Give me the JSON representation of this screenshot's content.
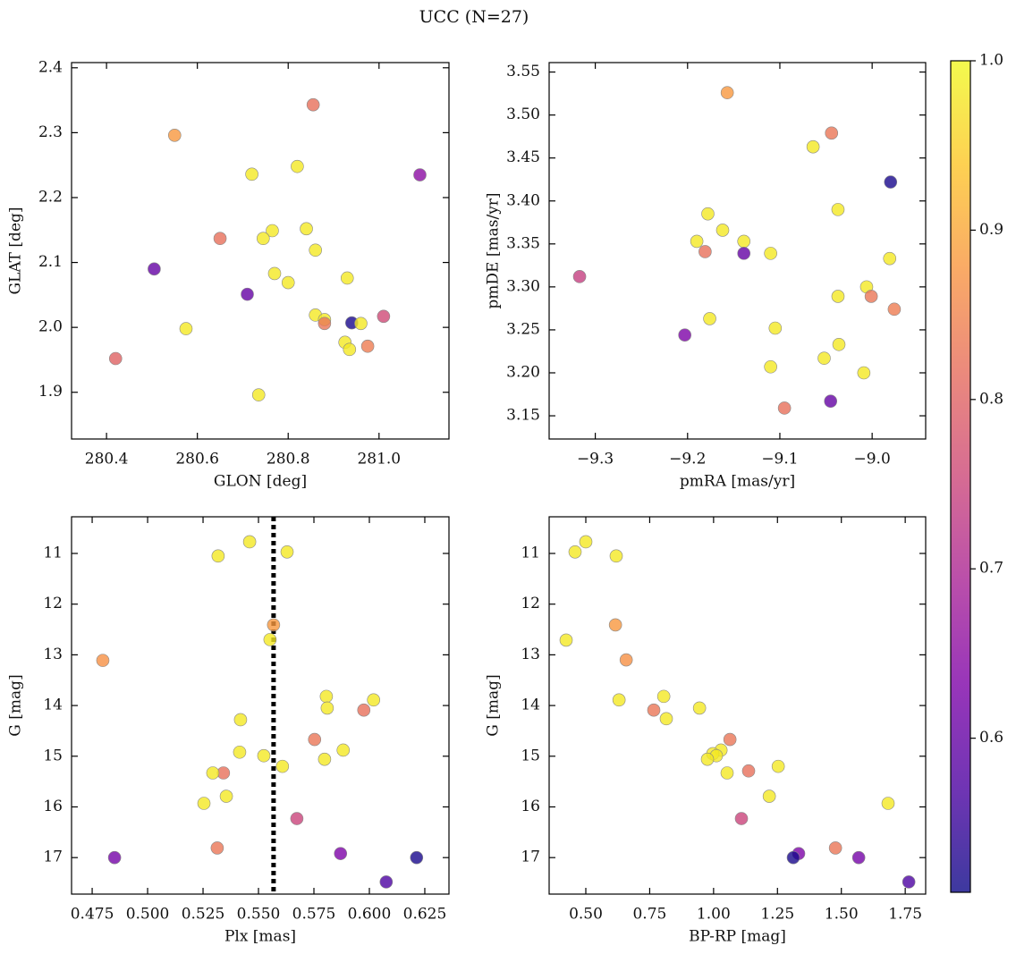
{
  "title": "UCC (N=27)",
  "colorbar": {
    "clim": [
      0.509,
      1.0
    ],
    "ticks": [
      0.6,
      0.7,
      0.8,
      0.9,
      {
        "value": 1,
        "label": "1.0"
      }
    ],
    "colormap": "plasma"
  },
  "chart_data": [
    {
      "type": "scatter",
      "xlabel": "GLON [deg]",
      "ylabel": "GLAT [deg]",
      "xlim": [
        280.323,
        281.154
      ],
      "ylim": [
        1.828,
        2.408
      ],
      "xticks": [
        280.4,
        280.6,
        280.8,
        {
          "value": 281,
          "label": "281.0"
        }
      ],
      "yticks": [
        1.9,
        {
          "value": 2,
          "label": "2.0"
        },
        2.1,
        2.2,
        2.3,
        2.4
      ],
      "x": [
        280.55,
        280.855,
        280.72,
        280.82,
        281.09,
        280.65,
        280.765,
        280.745,
        280.84,
        280.86,
        280.505,
        280.77,
        280.8,
        280.71,
        280.93,
        280.86,
        280.88,
        280.88,
        280.94,
        280.96,
        281.01,
        280.575,
        280.925,
        280.935,
        280.975,
        280.42,
        280.735
      ],
      "y": [
        2.296,
        2.343,
        2.236,
        2.248,
        2.235,
        2.137,
        2.149,
        2.137,
        2.152,
        2.119,
        2.09,
        2.083,
        2.069,
        2.051,
        2.076,
        2.019,
        2.012,
        2.006,
        2.007,
        2.006,
        2.017,
        1.998,
        1.977,
        1.966,
        1.971,
        1.952,
        1.896
      ],
      "color_values": [
        0.88,
        0.82,
        0.98,
        0.98,
        0.65,
        0.82,
        0.98,
        0.98,
        0.98,
        0.98,
        0.6,
        0.98,
        0.98,
        0.6,
        0.98,
        0.98,
        0.98,
        0.83,
        0.52,
        0.98,
        0.76,
        0.98,
        0.98,
        0.98,
        0.84,
        0.8,
        0.98
      ]
    },
    {
      "type": "scatter",
      "xlabel": "pmRA [mas/yr]",
      "ylabel": "pmDE [mas/yr]",
      "xlim": [
        -9.35,
        -8.942
      ],
      "ylim": [
        3.123,
        3.561
      ],
      "xticks": [
        {
          "value": -9.3,
          "label": "−9.3"
        },
        {
          "value": -9.2,
          "label": "−9.2"
        },
        {
          "value": -9.1,
          "label": "−9.1"
        },
        {
          "value": -9,
          "label": "−9.0"
        }
      ],
      "yticks": [
        3.15,
        {
          "value": 3.2,
          "label": "3.20"
        },
        3.25,
        {
          "value": 3.3,
          "label": "3.30"
        },
        3.35,
        {
          "value": 3.4,
          "label": "3.40"
        },
        3.45,
        {
          "value": 3.5,
          "label": "3.50"
        },
        3.55
      ],
      "x": [
        -9.157,
        -9.044,
        -9.064,
        -8.98,
        -9.037,
        -9.178,
        -9.162,
        -9.19,
        -9.139,
        -9.181,
        -9.139,
        -9.11,
        -9.317,
        -8.981,
        -9.006,
        -9.001,
        -8.976,
        -9.037,
        -9.176,
        -9.203,
        -9.105,
        -9.036,
        -9.052,
        -9.11,
        -9.009,
        -9.045,
        -9.095
      ],
      "y": [
        3.526,
        3.479,
        3.463,
        3.422,
        3.39,
        3.385,
        3.366,
        3.353,
        3.353,
        3.341,
        3.339,
        3.339,
        3.312,
        3.333,
        3.3,
        3.289,
        3.274,
        3.289,
        3.263,
        3.244,
        3.252,
        3.233,
        3.217,
        3.207,
        3.2,
        3.167,
        3.159
      ],
      "color_values": [
        0.88,
        0.83,
        0.98,
        0.52,
        0.98,
        0.98,
        0.98,
        0.98,
        0.98,
        0.82,
        0.6,
        0.98,
        0.74,
        0.98,
        0.98,
        0.83,
        0.84,
        0.98,
        0.98,
        0.63,
        0.98,
        0.98,
        0.98,
        0.98,
        0.98,
        0.6,
        0.82
      ]
    },
    {
      "type": "scatter",
      "xlabel": "Plx [mas]",
      "ylabel": "G [mag]",
      "xlim": [
        0.4657,
        0.6359
      ],
      "ylim": [
        17.72,
        10.277
      ],
      "vline": 0.5568,
      "xticks": [
        0.475,
        {
          "value": 0.5,
          "label": "0.500"
        },
        0.525,
        {
          "value": 0.55,
          "label": "0.550"
        },
        0.575,
        {
          "value": 0.6,
          "label": "0.600"
        },
        0.625
      ],
      "yticks": [
        11,
        12,
        13,
        14,
        15,
        16,
        17
      ],
      "x": [
        0.546,
        0.5318,
        0.5629,
        0.5568,
        0.5552,
        0.4798,
        0.5806,
        0.581,
        0.6019,
        0.5975,
        0.5419,
        0.5753,
        0.5415,
        0.5882,
        0.5524,
        0.5798,
        0.5608,
        0.5342,
        0.5294,
        0.5355,
        0.5254,
        0.5673,
        0.5314,
        0.587,
        0.4851,
        0.6213,
        0.6076
      ],
      "y": [
        10.77,
        11.05,
        10.97,
        12.41,
        12.7,
        13.11,
        13.82,
        14.05,
        13.89,
        14.09,
        14.28,
        14.67,
        14.92,
        14.88,
        14.99,
        15.06,
        15.2,
        15.33,
        15.33,
        15.79,
        15.93,
        16.23,
        16.81,
        16.92,
        17.0,
        17.0,
        17.48
      ],
      "color_values": [
        0.98,
        0.98,
        0.98,
        0.88,
        0.98,
        0.87,
        0.98,
        0.98,
        0.98,
        0.82,
        0.98,
        0.83,
        0.98,
        0.98,
        0.98,
        0.98,
        0.98,
        0.82,
        0.98,
        0.98,
        0.98,
        0.75,
        0.83,
        0.63,
        0.62,
        0.52,
        0.57
      ]
    },
    {
      "type": "scatter",
      "xlabel": "BP-RP [mag]",
      "ylabel": "G [mag]",
      "xlim": [
        0.3565,
        1.83
      ],
      "ylim": [
        17.72,
        10.277
      ],
      "xticks": [
        {
          "value": 0.5,
          "label": "0.50"
        },
        0.75,
        {
          "value": 1,
          "label": "1.00"
        },
        1.25,
        {
          "value": 1.5,
          "label": "1.50"
        },
        1.75
      ],
      "yticks": [
        11,
        12,
        13,
        14,
        15,
        16,
        17
      ],
      "x": [
        0.5,
        0.458,
        0.619,
        0.616,
        0.423,
        0.658,
        0.805,
        0.63,
        0.815,
        0.766,
        0.945,
        1.064,
        1.029,
        0.997,
        1.011,
        0.976,
        1.253,
        1.137,
        1.053,
        1.218,
        1.683,
        1.109,
        1.477,
        1.333,
        1.568,
        1.312,
        1.764
      ],
      "y": [
        10.77,
        10.97,
        11.05,
        12.41,
        12.71,
        13.1,
        13.82,
        13.89,
        14.26,
        14.09,
        14.05,
        14.67,
        14.88,
        14.95,
        14.99,
        15.06,
        15.2,
        15.29,
        15.33,
        15.79,
        15.93,
        16.23,
        16.81,
        16.92,
        17.0,
        17.0,
        17.48
      ],
      "color_values": [
        0.98,
        0.98,
        0.98,
        0.88,
        0.98,
        0.87,
        0.98,
        0.98,
        0.98,
        0.83,
        0.98,
        0.83,
        0.98,
        0.98,
        0.98,
        0.98,
        0.98,
        0.82,
        0.98,
        0.98,
        0.98,
        0.75,
        0.83,
        0.63,
        0.62,
        0.52,
        0.57
      ]
    }
  ]
}
